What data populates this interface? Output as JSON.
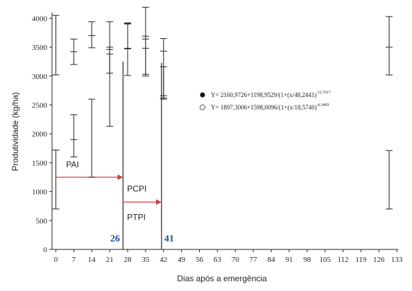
{
  "chart_data": {
    "type": "scatter",
    "xlabel": "Dias após a emergência",
    "ylabel": "Produtividade (kg/ha)",
    "categories": [
      "0",
      "7",
      "14",
      "21",
      "28",
      "35",
      "42",
      "49",
      "56",
      "63",
      "70",
      "77",
      "84",
      "91",
      "98",
      "105",
      "112",
      "119",
      "126",
      "133"
    ],
    "yticks": [
      "0",
      "500",
      "1000",
      "1500",
      "2000",
      "2500",
      "3000",
      "3500",
      "4000"
    ],
    "ylim": [
      0,
      4100
    ],
    "xlim": [
      -1.5,
      133.5
    ],
    "error_bars": [
      {
        "x": 0,
        "low": 700,
        "high": 1720,
        "mid": null
      },
      {
        "x": 0,
        "low": 3020,
        "high": 4050,
        "mid": null
      },
      {
        "x": 7,
        "low": 1600,
        "high": 2330,
        "mid": 1900
      },
      {
        "x": 7,
        "low": 3200,
        "high": 3640,
        "mid": 3420
      },
      {
        "x": 14,
        "low": 1250,
        "high": 2600,
        "mid": null
      },
      {
        "x": 14,
        "low": 3490,
        "high": 3940,
        "mid": 3700
      },
      {
        "x": 21,
        "low": 2130,
        "high": 3500,
        "mid": 3380
      },
      {
        "x": 21,
        "low": 3050,
        "high": 3940,
        "mid": 3460
      },
      {
        "x": 28,
        "low": 3010,
        "high": 3920,
        "mid": 3480
      },
      {
        "x": 28,
        "low": 3470,
        "high": 3910,
        "mid": 3900
      },
      {
        "x": 35,
        "low": 3000,
        "high": 4190,
        "mid": 3480
      },
      {
        "x": 35,
        "low": 3030,
        "high": 3690,
        "mid": 3640
      },
      {
        "x": 42,
        "low": 2600,
        "high": 3650,
        "mid": 3430
      },
      {
        "x": 42,
        "low": 2620,
        "high": 3160,
        "mid": 2660
      },
      {
        "x": 130,
        "low": 3020,
        "high": 4030,
        "mid": 3500
      },
      {
        "x": 130,
        "low": 700,
        "high": 1710,
        "mid": null
      }
    ],
    "reference_lines": [
      {
        "x": 26.2,
        "top": 3250
      },
      {
        "x": 41.2,
        "top": 3230
      }
    ],
    "arrows": [
      {
        "from": 0,
        "to": 26.2,
        "y": 1250
      },
      {
        "from": 26.2,
        "to": 41.2,
        "y": 820
      }
    ],
    "annotations": [
      {
        "text": "PAI",
        "x": 4,
        "y": 1420
      },
      {
        "text": "PCPI",
        "x": 27.8,
        "y": 1000
      },
      {
        "text": "PTPI",
        "x": 27.8,
        "y": 510
      },
      {
        "text": "26",
        "x": 21.2,
        "y": 140,
        "color": "#1f4e9a"
      },
      {
        "text": "41",
        "x": 42.3,
        "y": 140,
        "color": "#1f4e9a"
      }
    ],
    "legend": [
      {
        "marker": "filled-circle",
        "text": "Y= 2160,9726+1198,9529/(1+(x/48,2441)",
        "sup": "15,7617"
      },
      {
        "marker": "open-circle",
        "text": "Y= 1897,3006+1598,0096/(1+(x/18,5740)",
        "sup": "4,3469"
      }
    ],
    "colors": {
      "axis": "#222222",
      "bars": "#333333",
      "arrow": "#d83b3b",
      "blue_label": "#1f4e9a"
    }
  }
}
